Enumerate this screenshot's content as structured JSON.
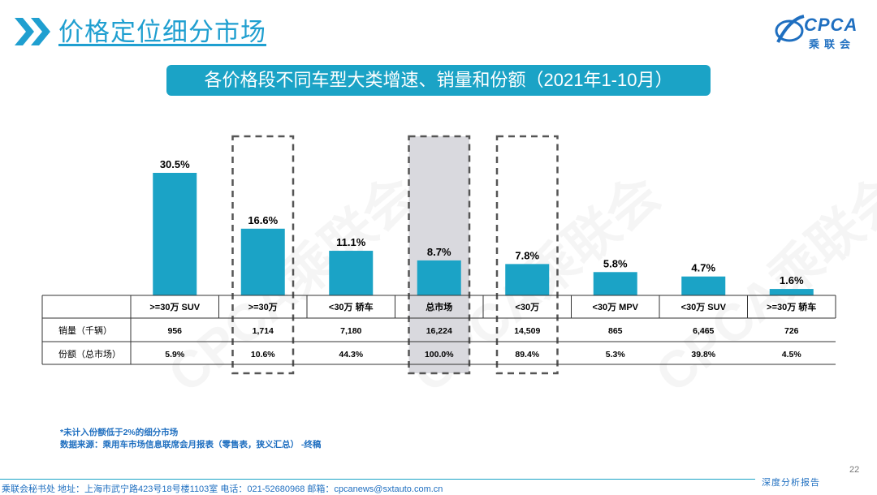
{
  "header": {
    "title": "价格定位细分市场",
    "logo_text": "CPCA",
    "logo_sub": "乘联会"
  },
  "banner": {
    "title": "各价格段不同车型大类增速、销量和份额（2021年1-10月）"
  },
  "watermark": "CPCA乘联会",
  "chart_data": {
    "type": "bar",
    "categories": [
      ">=30万 SUV",
      ">=30万",
      "<30万 轿车",
      "总市场",
      "<30万",
      "<30万 MPV",
      "<30万 SUV",
      ">=30万 轿车"
    ],
    "values": [
      30.5,
      16.6,
      11.1,
      8.7,
      7.8,
      5.8,
      4.7,
      1.6
    ],
    "value_labels": [
      "30.5%",
      "16.6%",
      "11.1%",
      "8.7%",
      "7.8%",
      "5.8%",
      "4.7%",
      "1.6%"
    ],
    "bar_color": "#1ba3c6",
    "highlight_color": "#d9d9de",
    "highlighted": [
      1,
      3,
      4
    ],
    "table": {
      "rows": [
        {
          "label": "销量（千辆）",
          "values": [
            "956",
            "1,714",
            "7,180",
            "16,224",
            "14,509",
            "865",
            "6,465",
            "726"
          ]
        },
        {
          "label": "份额（总市场）",
          "values": [
            "5.9%",
            "10.6%",
            "44.3%",
            "100.0%",
            "89.4%",
            "5.3%",
            "39.8%",
            "4.5%"
          ]
        }
      ]
    }
  },
  "notes": [
    "*未计入份额低于2%的细分市场",
    "数据来源：乘用车市场信息联席会月报表（零售表，狭义汇总） -终稿"
  ],
  "footer": {
    "text": "乘联会秘书处   地址：上海市武宁路423号18号楼1103室  电话：021-52680968  邮箱：cpcanews@sxtauto.com.cn",
    "label": "深度分析报告",
    "page": "22"
  }
}
